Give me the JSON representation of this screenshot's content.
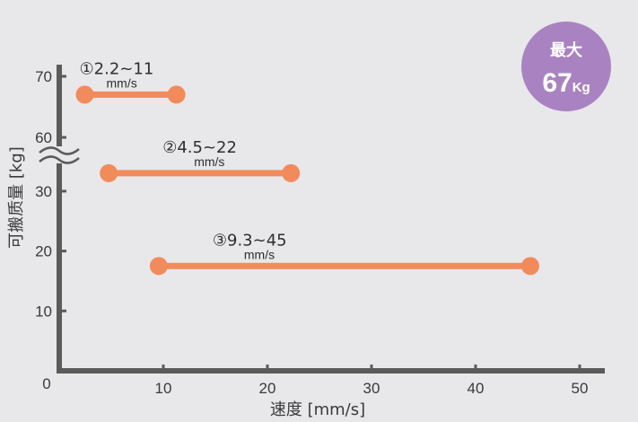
{
  "chart_data": {
    "type": "range-bar",
    "xlabel": "速度 [mm/s]",
    "ylabel": "可搬质量 [kg]",
    "xlim": [
      0,
      50
    ],
    "x_ticks": [
      "10",
      "20",
      "30",
      "40",
      "50"
    ],
    "y_ticks": [
      "70",
      "60",
      "30",
      "20",
      "10"
    ],
    "origin_label": "0",
    "axis_break": "between 60 and 30",
    "grid": false,
    "series": [
      {
        "label": "①2.2~11",
        "unit": "mm/s",
        "x_start": 2.2,
        "x_end": 11,
        "y": 67
      },
      {
        "label": "②4.5~22",
        "unit": "mm/s",
        "x_start": 4.5,
        "x_end": 22,
        "y": 33
      },
      {
        "label": "③9.3~45",
        "unit": "mm/s",
        "x_start": 9.3,
        "x_end": 45,
        "y": 17.5
      }
    ],
    "badge": {
      "top": "最大",
      "value": "67",
      "unit": "Kg"
    },
    "colors": {
      "bar": "#f28b5b",
      "axis": "#5b5b5b",
      "badge": "#a983c1",
      "background": "#e8e7ea"
    }
  }
}
